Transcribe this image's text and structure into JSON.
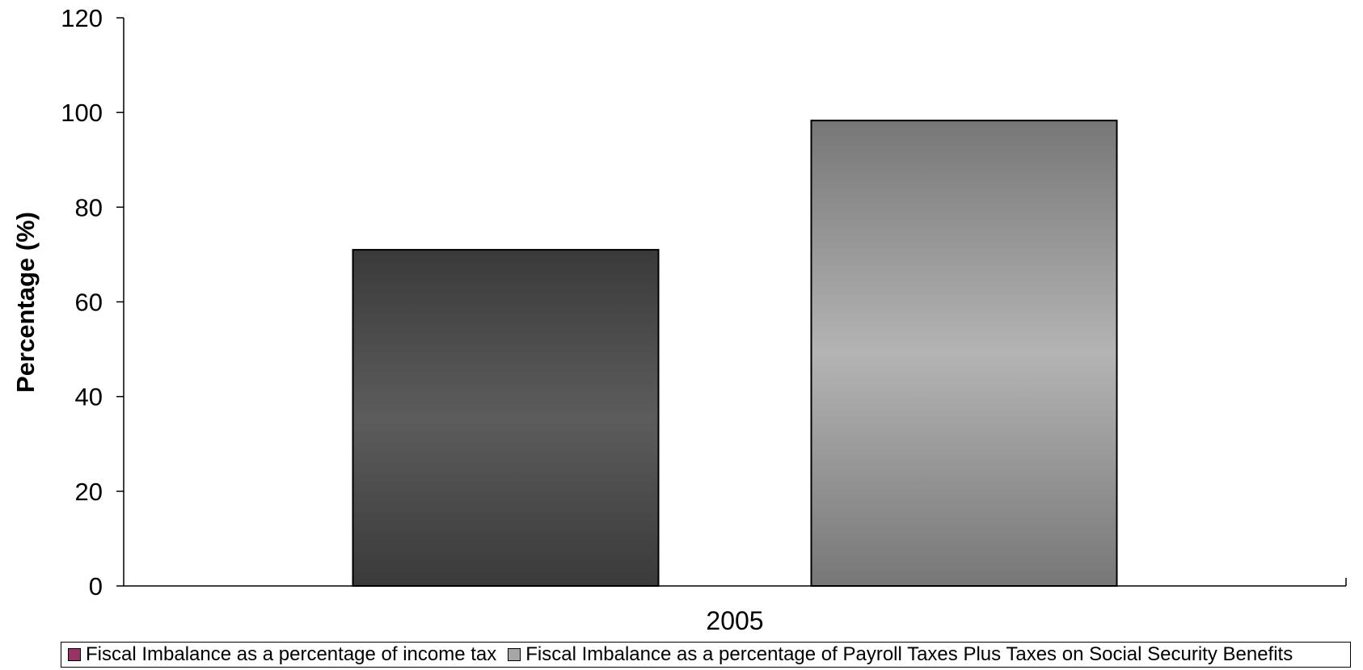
{
  "chart_data": {
    "type": "bar",
    "categories": [
      "2005"
    ],
    "series": [
      {
        "name": "Fiscal Imbalance as a percentage of income tax",
        "values": [
          71
        ],
        "color": "#555555",
        "legend_color": "#993366"
      },
      {
        "name": "Fiscal Imbalance as a percentage of Payroll Taxes Plus Taxes on Social Security Benefits",
        "values": [
          98.3
        ],
        "color": "#b3b3b3",
        "legend_color": "#a6a6a6"
      }
    ],
    "title": "",
    "xlabel": "",
    "ylabel": "Percentage (%)",
    "ylim": [
      0,
      120
    ],
    "yticks": [
      "0",
      "20",
      "40",
      "60",
      "80",
      "100",
      "120"
    ],
    "grid": false,
    "legend_position": "bottom"
  }
}
